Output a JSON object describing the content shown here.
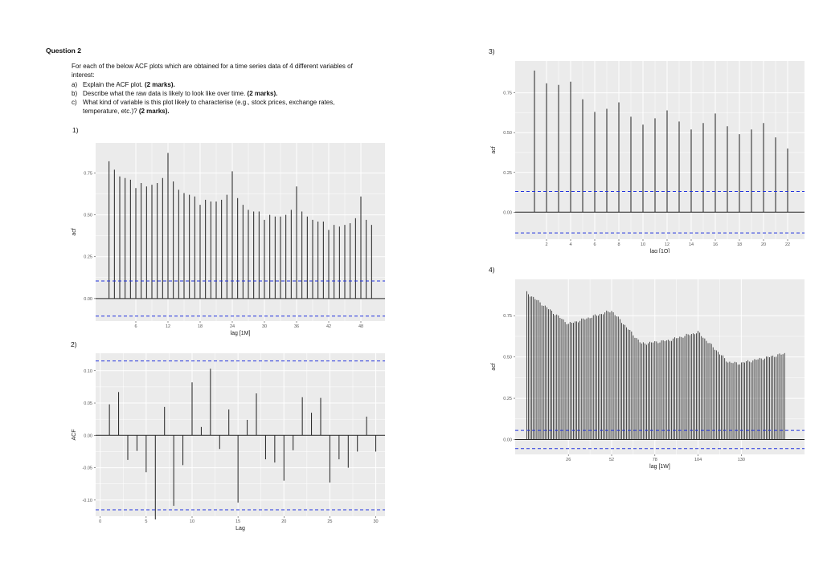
{
  "question": {
    "title": "Question 2",
    "intro": "For each of the below ACF plots which are obtained for a time series data of 4 different variables of interest:",
    "items": [
      {
        "letter": "a)",
        "text": "Explain the ACF plot. ",
        "marks": "(2 marks)."
      },
      {
        "letter": "b)",
        "text": "Describe what the raw data is likely to look like over time. ",
        "marks": "(2 marks)."
      },
      {
        "letter": "c)",
        "text": "What kind of variable is this plot likely to characterise (e.g., stock prices, exchange rates, temperature, etc.)? ",
        "marks": "(2 marks)."
      }
    ]
  },
  "plot_labels": {
    "p1": "1)",
    "p2": "2)",
    "p3": "3)",
    "p4": "4)"
  },
  "colors": {
    "panel": "#ebebeb",
    "grid": "#ffffff",
    "bar": "#222222",
    "ci": "#2233dd",
    "axis_text": "#555555"
  },
  "chart_data": [
    {
      "id": "plot1",
      "type": "bar",
      "xlabel": "lag [1M]",
      "ylabel": "acf",
      "x": [
        1,
        2,
        3,
        4,
        5,
        6,
        7,
        8,
        9,
        10,
        11,
        12,
        13,
        14,
        15,
        16,
        17,
        18,
        19,
        20,
        21,
        22,
        23,
        24,
        25,
        26,
        27,
        28,
        29,
        30,
        31,
        32,
        33,
        34,
        35,
        36,
        37,
        38,
        39,
        40,
        41,
        42,
        43,
        44,
        45,
        46,
        47,
        48,
        49,
        50
      ],
      "values": [
        0.82,
        0.77,
        0.73,
        0.72,
        0.71,
        0.66,
        0.69,
        0.67,
        0.68,
        0.69,
        0.72,
        0.87,
        0.7,
        0.65,
        0.63,
        0.62,
        0.61,
        0.56,
        0.59,
        0.58,
        0.58,
        0.59,
        0.62,
        0.76,
        0.6,
        0.56,
        0.53,
        0.52,
        0.52,
        0.47,
        0.5,
        0.49,
        0.49,
        0.5,
        0.53,
        0.67,
        0.52,
        0.49,
        0.47,
        0.46,
        0.46,
        0.41,
        0.44,
        0.43,
        0.44,
        0.45,
        0.48,
        0.61,
        0.47,
        0.44
      ],
      "xlim": [
        -1.5,
        52.5
      ],
      "ylim": [
        -0.135,
        0.93
      ],
      "xticks": [
        6,
        12,
        18,
        24,
        30,
        36,
        42,
        48
      ],
      "yticks": [
        0,
        0.25,
        0.5,
        0.75
      ],
      "ytick_labels": [
        "0.00",
        "0.25",
        "0.50",
        "0.75"
      ],
      "ci": 0.105,
      "grid": true
    },
    {
      "id": "plot2",
      "type": "bar",
      "xlabel": "Lag",
      "ylabel": "ACF",
      "x": [
        1,
        2,
        3,
        4,
        5,
        6,
        7,
        8,
        9,
        10,
        11,
        12,
        13,
        14,
        15,
        16,
        17,
        18,
        19,
        20,
        21,
        22,
        23,
        24,
        25,
        26,
        27,
        28,
        29,
        30
      ],
      "values": [
        0.048,
        0.067,
        -0.038,
        -0.024,
        -0.057,
        -0.13,
        0.044,
        -0.109,
        -0.046,
        0.082,
        0.013,
        0.103,
        -0.021,
        0.04,
        -0.104,
        0.024,
        0.065,
        -0.037,
        -0.042,
        -0.07,
        -0.023,
        0.059,
        0.035,
        0.058,
        -0.073,
        -0.037,
        -0.05,
        -0.025,
        0.029,
        -0.025
      ],
      "xlim": [
        -0.5,
        31
      ],
      "ylim": [
        -0.125,
        0.127
      ],
      "xticks": [
        0,
        5,
        10,
        15,
        20,
        25,
        30
      ],
      "yticks": [
        -0.1,
        -0.05,
        0.0,
        0.05,
        0.1
      ],
      "ytick_labels": [
        "-0.10",
        "-0.05",
        "0.00",
        "0.05",
        "0.10"
      ],
      "ci": 0.115,
      "grid": true
    },
    {
      "id": "plot3",
      "type": "bar",
      "xlabel": "lag [1Q]",
      "ylabel": "acf",
      "x": [
        1,
        2,
        3,
        4,
        5,
        6,
        7,
        8,
        9,
        10,
        11,
        12,
        13,
        14,
        15,
        16,
        17,
        18,
        19,
        20,
        21,
        22
      ],
      "values": [
        0.89,
        0.81,
        0.8,
        0.82,
        0.71,
        0.63,
        0.65,
        0.69,
        0.6,
        0.55,
        0.59,
        0.64,
        0.57,
        0.52,
        0.56,
        0.62,
        0.54,
        0.49,
        0.52,
        0.56,
        0.47,
        0.4
      ],
      "xlim": [
        -0.6,
        23.4
      ],
      "ylim": [
        -0.17,
        0.95
      ],
      "xticks": [
        2,
        4,
        6,
        8,
        10,
        12,
        14,
        16,
        18,
        20,
        22
      ],
      "yticks": [
        0,
        0.25,
        0.5,
        0.75
      ],
      "ytick_labels": [
        "0.00",
        "0.25",
        "0.50",
        "0.75"
      ],
      "ci": 0.13,
      "grid": true
    },
    {
      "id": "plot4",
      "type": "bar",
      "xlabel": "lag [1W]",
      "ylabel": "acf",
      "lags": [
        1,
        156
      ],
      "profile_x": [
        1,
        26,
        52,
        70,
        86,
        104,
        122,
        128,
        156
      ],
      "profile_y": [
        0.89,
        0.7,
        0.78,
        0.58,
        0.6,
        0.65,
        0.47,
        0.46,
        0.52
      ],
      "xlim": [
        -6,
        168
      ],
      "ylim": [
        -0.09,
        0.97
      ],
      "xticks": [
        26,
        52,
        78,
        104,
        130
      ],
      "yticks": [
        0,
        0.25,
        0.5,
        0.75
      ],
      "ytick_labels": [
        "0.00",
        "0.25",
        "0.50",
        "0.75"
      ],
      "ci": 0.055,
      "grid": true
    }
  ]
}
